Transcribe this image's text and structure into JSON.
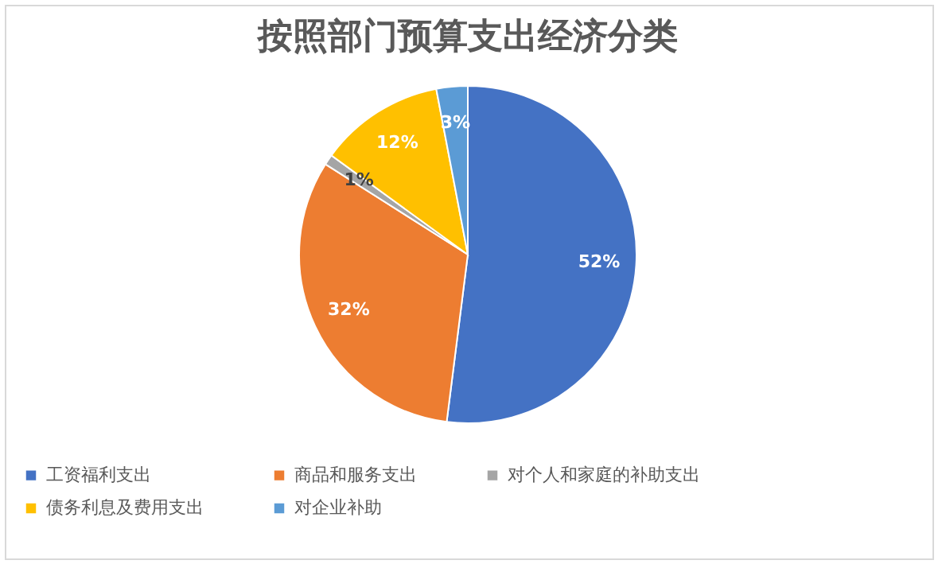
{
  "chart_data": {
    "type": "pie",
    "title": "按照部门预算支出经济分类",
    "categories": [
      "工资福利支出",
      "商品和服务支出",
      "对个人和家庭的补助支出",
      "债务利息及费用支出",
      "对企业补助"
    ],
    "values": [
      52,
      32,
      1,
      12,
      3
    ],
    "value_labels": [
      "52%",
      "32%",
      "1%",
      "12%",
      "3%"
    ],
    "colors": [
      "#4472c4",
      "#ed7d31",
      "#a5a5a5",
      "#ffc000",
      "#5b9bd5"
    ],
    "legend": "bottom"
  }
}
